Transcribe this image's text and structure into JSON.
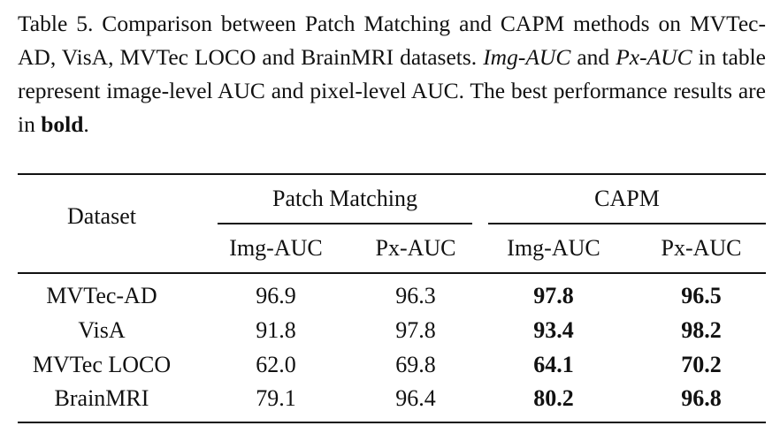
{
  "caption": {
    "part1": "Table 5. Comparison between Patch Matching and CAPM methods on MVTec-AD, VisA, MVTec LOCO and BrainMRI datasets. ",
    "img_auc": "Img-AUC",
    "and": " and ",
    "px_auc": "Px-AUC",
    "part2": " in table represent image-level AUC and pixel-level AUC. The best performance results are in ",
    "bold_word": "bold",
    "period": "."
  },
  "table": {
    "dataset_header": "Dataset",
    "groups": [
      {
        "label": "Patch Matching"
      },
      {
        "label": "CAPM"
      }
    ],
    "subheaders": [
      "Img-AUC",
      "Px-AUC",
      "Img-AUC",
      "Px-AUC"
    ],
    "rows": [
      {
        "dataset": "MVTec-AD",
        "values": [
          "96.9",
          "96.3",
          "97.8",
          "96.5"
        ]
      },
      {
        "dataset": "VisA",
        "values": [
          "91.8",
          "97.8",
          "93.4",
          "98.2"
        ]
      },
      {
        "dataset": "MVTec LOCO",
        "values": [
          "62.0",
          "69.8",
          "64.1",
          "70.2"
        ]
      },
      {
        "dataset": "BrainMRI",
        "values": [
          "79.1",
          "96.4",
          "80.2",
          "96.8"
        ]
      }
    ]
  }
}
